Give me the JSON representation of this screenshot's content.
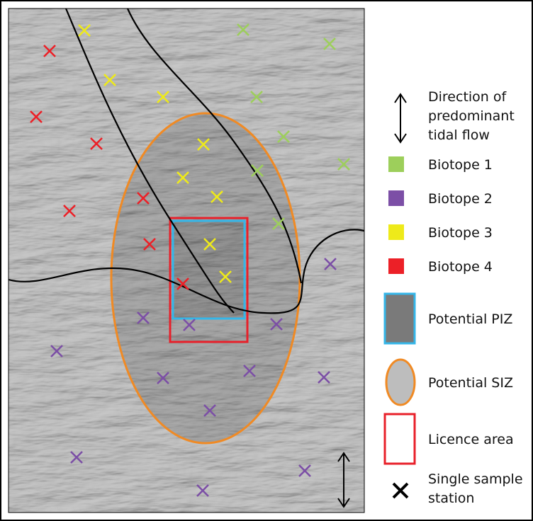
{
  "legend": {
    "flow": {
      "lines": [
        "Direction of",
        "predominant",
        "tidal flow"
      ]
    },
    "biotopes": [
      {
        "label": "Biotope 1",
        "color": "#9dcf5b"
      },
      {
        "label": "Biotope 2",
        "color": "#7c4fa6"
      },
      {
        "label": "Biotope 3",
        "color": "#eeea1a"
      },
      {
        "label": "Biotope 4",
        "color": "#ec2027"
      }
    ],
    "piz": {
      "label": "Potential PIZ"
    },
    "siz": {
      "label": "Potential SIZ"
    },
    "licence": {
      "label": "Licence area"
    },
    "station": {
      "lines": [
        "Single sample",
        "station"
      ]
    }
  }
}
